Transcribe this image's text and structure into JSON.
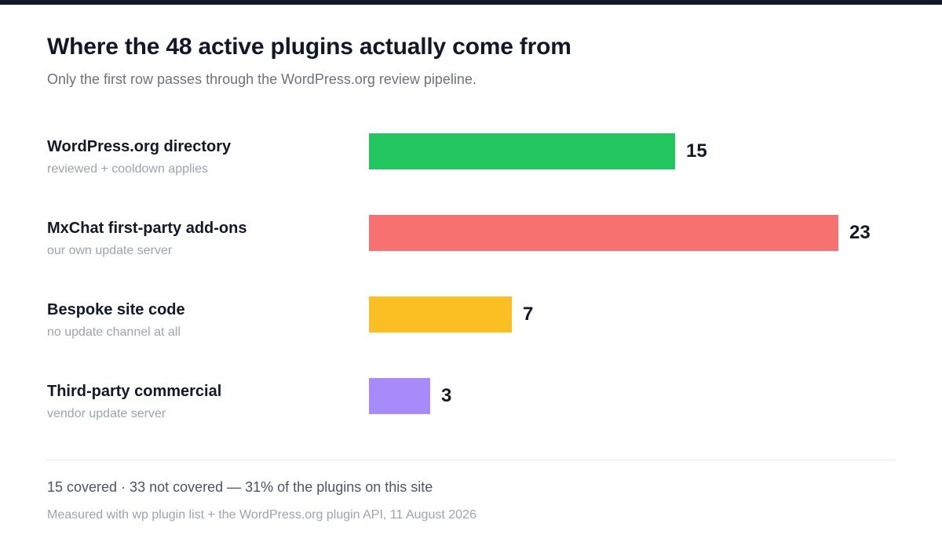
{
  "header": {
    "title": "Where the 48 active plugins actually come from",
    "subtitle": "Only the first row passes through the WordPress.org review pipeline."
  },
  "chart_data": {
    "type": "bar",
    "orientation": "horizontal",
    "title": "Where the 48 active plugins actually come from",
    "subtitle": "Only the first row passes through the WordPress.org review pipeline.",
    "categories": [
      "WordPress.org directory",
      "MxChat first-party add-ons",
      "Bespoke site code",
      "Third-party commercial"
    ],
    "category_descriptions": [
      "reviewed + cooldown applies",
      "our own update server",
      "no update channel at all",
      "vendor update server"
    ],
    "values": [
      15,
      23,
      7,
      3
    ],
    "data_labels": [
      "15",
      "23",
      "7",
      "3"
    ],
    "colors": [
      "#22c55e",
      "#f87171",
      "#fbbf24",
      "#a78bfa"
    ],
    "xlim": [
      0,
      23
    ],
    "grid": false,
    "legend": "none"
  },
  "footer": {
    "summary": "15 covered · 33 not covered — 31% of the plugins on this site",
    "footnote": "Measured with wp plugin list + the WordPress.org plugin API, 11 August 2026"
  }
}
